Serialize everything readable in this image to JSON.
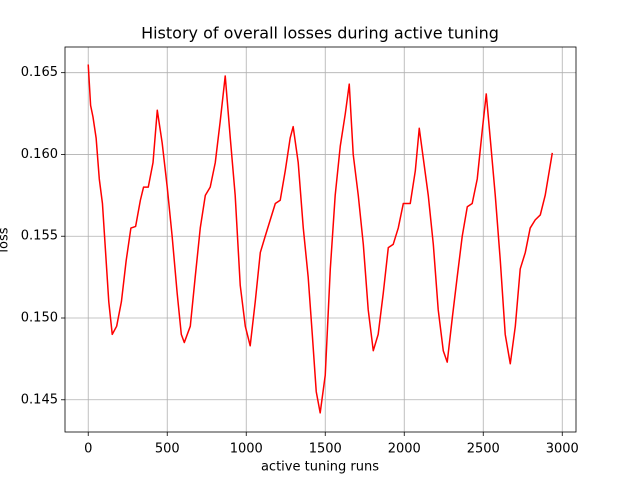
{
  "chart_data": {
    "type": "line",
    "title": "History of overall losses during active tuning",
    "x_label": "active tuning runs",
    "y_label": "loss",
    "x": [
      0,
      15,
      30,
      50,
      70,
      90,
      110,
      130,
      152,
      180,
      210,
      240,
      270,
      300,
      330,
      350,
      380,
      410,
      437,
      468,
      500,
      531,
      563,
      589,
      608,
      646,
      677,
      709,
      741,
      772,
      804,
      835,
      867,
      899,
      930,
      962,
      994,
      1025,
      1057,
      1089,
      1120,
      1152,
      1184,
      1215,
      1247,
      1278,
      1297,
      1329,
      1361,
      1392,
      1418,
      1443,
      1468,
      1500,
      1532,
      1563,
      1595,
      1627,
      1652,
      1677,
      1709,
      1741,
      1772,
      1804,
      1835,
      1867,
      1899,
      1930,
      1962,
      1994,
      2038,
      2070,
      2095,
      2120,
      2152,
      2184,
      2215,
      2247,
      2272,
      2304,
      2335,
      2367,
      2399,
      2430,
      2462,
      2494,
      2519,
      2544,
      2576,
      2608,
      2639,
      2671,
      2703,
      2734,
      2766,
      2797,
      2829,
      2861,
      2892,
      2937
    ],
    "series": [
      {
        "name": "loss",
        "color": "#ff0000",
        "values": [
          0.1655,
          0.163,
          0.1623,
          0.161,
          0.1585,
          0.157,
          0.154,
          0.151,
          0.149,
          0.1495,
          0.151,
          0.1535,
          0.1555,
          0.1556,
          0.1572,
          0.158,
          0.158,
          0.1595,
          0.1627,
          0.1607,
          0.158,
          0.155,
          0.1515,
          0.149,
          0.1485,
          0.1495,
          0.1525,
          0.1555,
          0.1575,
          0.158,
          0.1595,
          0.162,
          0.1648,
          0.161,
          0.1575,
          0.152,
          0.1495,
          0.1483,
          0.151,
          0.154,
          0.155,
          0.156,
          0.157,
          0.1572,
          0.159,
          0.161,
          0.1617,
          0.1595,
          0.1555,
          0.1525,
          0.149,
          0.1455,
          0.1442,
          0.1465,
          0.153,
          0.1575,
          0.1605,
          0.1625,
          0.1643,
          0.16,
          0.1575,
          0.1545,
          0.1505,
          0.148,
          0.149,
          0.1515,
          0.1543,
          0.1545,
          0.1555,
          0.157,
          0.157,
          0.159,
          0.1616,
          0.1598,
          0.1575,
          0.1545,
          0.1505,
          0.148,
          0.1473,
          0.15,
          0.1525,
          0.155,
          0.1568,
          0.157,
          0.1585,
          0.1615,
          0.1637,
          0.161,
          0.1575,
          0.1535,
          0.149,
          0.1472,
          0.1495,
          0.153,
          0.154,
          0.1555,
          0.156,
          0.1563,
          0.1575,
          0.1601
        ]
      }
    ],
    "xlim": [
      -147,
      3087
    ],
    "ylim": [
      0.14303,
      0.16657
    ],
    "xticks": [
      0,
      500,
      1000,
      1500,
      2000,
      2500,
      3000
    ],
    "yticks": [
      0.145,
      {
        "value": 0.15,
        "label": "0.150"
      },
      0.155,
      {
        "value": 0.16,
        "label": "0.160"
      },
      0.165
    ],
    "grid": true
  }
}
